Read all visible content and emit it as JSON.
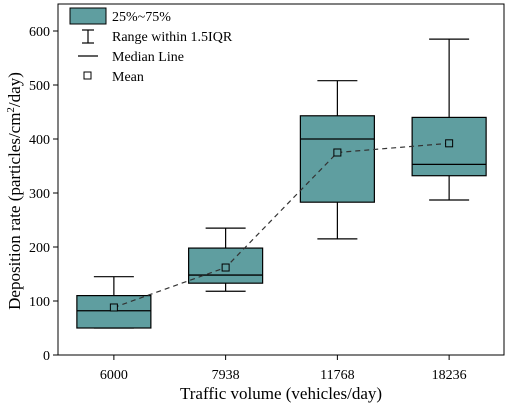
{
  "chart_data": {
    "type": "box",
    "xlabel": "Traffic volume (vehicles/day)",
    "ylabel": {
      "prefix": "Deposition rate (particles/cm",
      "superscript": "2",
      "suffix": "/day)"
    },
    "ylim": [
      0,
      650
    ],
    "yticks": [
      0,
      100,
      200,
      300,
      400,
      500,
      600
    ],
    "categories": [
      "6000",
      "7938",
      "11768",
      "18236"
    ],
    "boxes": [
      {
        "category": "6000",
        "whisker_low": 50,
        "q1": 50,
        "median": 82,
        "q3": 110,
        "whisker_high": 145,
        "mean": 88
      },
      {
        "category": "7938",
        "whisker_low": 118,
        "q1": 133,
        "median": 148,
        "q3": 198,
        "whisker_high": 235,
        "mean": 162
      },
      {
        "category": "11768",
        "whisker_low": 215,
        "q1": 283,
        "median": 400,
        "q3": 443,
        "whisker_high": 508,
        "mean": 375
      },
      {
        "category": "18236",
        "whisker_low": 287,
        "q1": 332,
        "median": 353,
        "q3": 440,
        "whisker_high": 585,
        "mean": 392
      }
    ],
    "mean_line": "dashed",
    "box_color": "#5f9ea0",
    "legend": {
      "placement": "top-left",
      "entries": {
        "box": "25%~75%",
        "range": "Range within 1.5IQR",
        "median": "Median Line",
        "mean": "Mean"
      }
    },
    "grid": false
  }
}
